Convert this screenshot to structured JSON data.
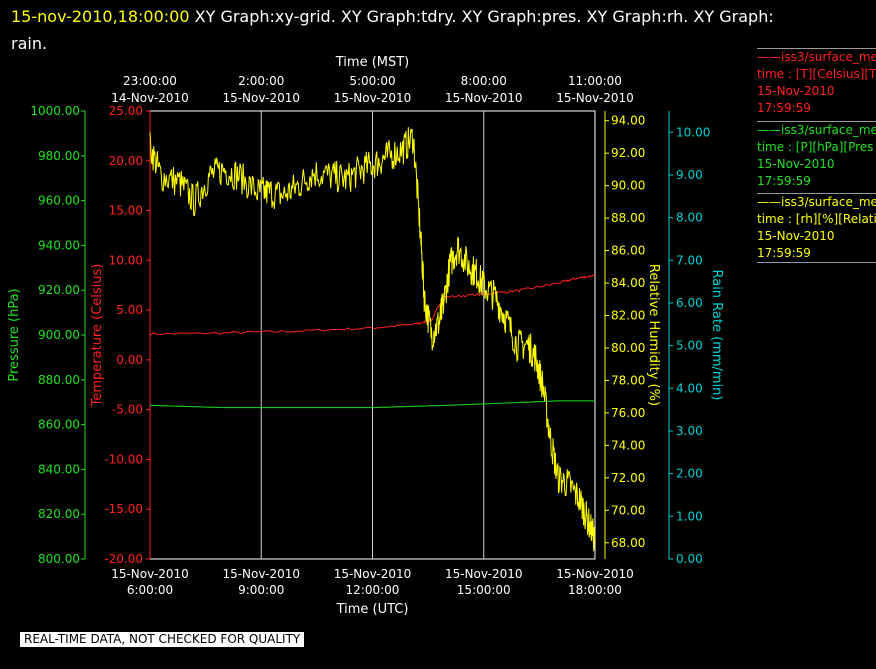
{
  "header": {
    "timestamp": "15-nov-2010,18:00:00",
    "titles_line1": " XY Graph:xy-grid.  XY Graph:tdry.  XY Graph:pres.  XY Graph:rh.  XY Graph:",
    "titles_line2": "rain."
  },
  "legend": [
    {
      "line1": "——iss3/surface_me",
      "line2": "time : [T][Celsius][T",
      "line3": "15-Nov-2010",
      "line4": "17:59:59",
      "color": "#ff2020"
    },
    {
      "line1": "——iss3/surface_me",
      "line2": "time : [P][hPa][Pres",
      "line3": "15-Nov-2010",
      "line4": "17:59:59",
      "color": "#20e020"
    },
    {
      "line1": "——iss3/surface_me",
      "line2": "time : [rh][%][Relati",
      "line3": "15-Nov-2010",
      "line4": "17:59:59",
      "color": "#ffff00"
    }
  ],
  "banner": "REAL-TIME DATA, NOT CHECKED FOR QUALITY",
  "chart_data": {
    "type": "line",
    "grid": "vertical only",
    "x_bottom": {
      "label": "Time (UTC)",
      "range": [
        "15-Nov-2010 6:00:00",
        "15-Nov-2010 18:00:00"
      ],
      "ticks": [
        {
          "date": "15-Nov-2010",
          "time": "6:00:00"
        },
        {
          "date": "15-Nov-2010",
          "time": "9:00:00"
        },
        {
          "date": "15-Nov-2010",
          "time": "12:00:00"
        },
        {
          "date": "15-Nov-2010",
          "time": "15:00:00"
        },
        {
          "date": "15-Nov-2010",
          "time": "18:00:00"
        }
      ]
    },
    "x_top": {
      "label": "Time (MST)",
      "ticks": [
        {
          "time": "23:00:00",
          "date": "14-Nov-2010"
        },
        {
          "time": "2:00:00",
          "date": "15-Nov-2010"
        },
        {
          "time": "5:00:00",
          "date": "15-Nov-2010"
        },
        {
          "time": "8:00:00",
          "date": "15-Nov-2010"
        },
        {
          "time": "11:00:00",
          "date": "15-Nov-2010"
        }
      ]
    },
    "axes": [
      {
        "id": "pres",
        "label": "Pressure (hPa)",
        "color": "#20e020",
        "min": 800,
        "max": 1000,
        "ticks": [
          "800.00",
          "820.00",
          "840.00",
          "860.00",
          "880.00",
          "900.00",
          "920.00",
          "940.00",
          "960.00",
          "980.00",
          "1000.00"
        ]
      },
      {
        "id": "tdry",
        "label": "Temperature (Celsius)",
        "color": "#ff2020",
        "min": -20,
        "max": 25,
        "ticks": [
          "-20.00",
          "-15.00",
          "-10.00",
          "-5.00",
          "0.00",
          "5.00",
          "10.00",
          "15.00",
          "20.00",
          "25.00"
        ]
      },
      {
        "id": "rh",
        "label": "Relative Humidity (%)",
        "color": "#ffff00",
        "min": 67,
        "max": 94.6,
        "ticks": [
          "68.00",
          "70.00",
          "72.00",
          "74.00",
          "76.00",
          "78.00",
          "80.00",
          "82.00",
          "84.00",
          "86.00",
          "88.00",
          "90.00",
          "92.00",
          "94.00"
        ]
      },
      {
        "id": "rain",
        "label": "Rain Rate (mm/min)",
        "color": "#00d0d0",
        "min": 0,
        "max": 10.5,
        "ticks": [
          "0.00",
          "1.00",
          "2.00",
          "3.00",
          "4.00",
          "5.00",
          "6.00",
          "7.00",
          "8.00",
          "9.00",
          "10.00"
        ]
      }
    ],
    "series": [
      {
        "axis": "tdry",
        "color": "#ff2020",
        "x_hours": [
          6,
          8,
          10,
          12,
          13.2,
          13.6,
          13.9,
          15,
          16,
          17,
          17.5,
          18
        ],
        "y": [
          2.6,
          2.7,
          2.9,
          3.2,
          3.6,
          4.0,
          6.3,
          6.6,
          7.0,
          7.7,
          8.2,
          8.5
        ]
      },
      {
        "axis": "pres",
        "color": "#20e020",
        "x_hours": [
          6,
          8,
          10,
          12,
          14,
          16,
          17,
          18
        ],
        "y": [
          868.6,
          867.6,
          867.6,
          867.6,
          868.6,
          869.9,
          870.6,
          870.6
        ]
      },
      {
        "axis": "rh",
        "color": "#ffff00",
        "x_hours": [
          6,
          6.3,
          6.8,
          7.2,
          7.6,
          8.0,
          8.4,
          8.9,
          9.2,
          9.6,
          10.0,
          10.4,
          10.9,
          11.3,
          11.7,
          12.1,
          12.4,
          12.8,
          13.1,
          13.3,
          13.4,
          13.6,
          13.8,
          13.9,
          14.1,
          14.3,
          14.6,
          14.8,
          15.0,
          15.3,
          15.6,
          15.9,
          16.2,
          16.4,
          16.6,
          16.8,
          17.0,
          17.3,
          17.6,
          17.8,
          18.0
        ],
        "y": [
          92.4,
          90.6,
          90.2,
          89.0,
          90.6,
          91.0,
          90.6,
          89.6,
          89.6,
          89.4,
          90.0,
          90.8,
          90.6,
          90.4,
          91.0,
          91.4,
          91.8,
          92.2,
          93.0,
          86.8,
          83.0,
          80.8,
          81.6,
          82.6,
          85.2,
          86.2,
          85.0,
          84.6,
          83.8,
          83.2,
          81.8,
          80.2,
          80.2,
          79.4,
          77.6,
          74.4,
          72.0,
          71.6,
          70.6,
          69.4,
          68.2
        ]
      }
    ]
  }
}
